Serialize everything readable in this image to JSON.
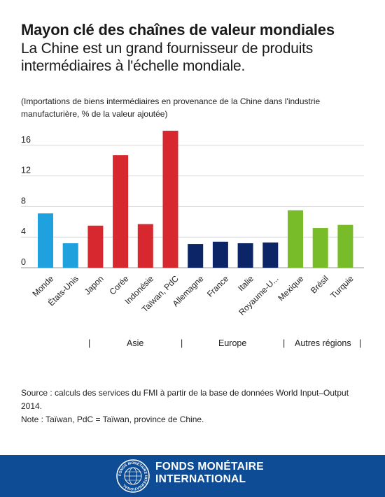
{
  "title": "Mayon clé des chaînes de valeur mondiales",
  "subtitle": "La Chine est un grand fournisseur de produits intermédiaires à l'échelle mondiale.",
  "units_note": "(Importations de biens intermédiaires en provenance de la Chine dans l'industrie manufacturière, % de la valeur ajoutée)",
  "chart_data": {
    "type": "bar",
    "categories": [
      "Monde",
      "États-Unis",
      "Japon",
      "Corée",
      "Indonésie",
      "Taïwan, PdC",
      "Allemagne",
      "France",
      "Italie",
      "Royaume-U...",
      "Mexique",
      "Brésil",
      "Turquie"
    ],
    "values": [
      7.1,
      3.2,
      5.5,
      14.7,
      5.7,
      17.9,
      3.1,
      3.4,
      3.2,
      3.3,
      7.5,
      5.2,
      5.6
    ],
    "colors": [
      "#1ea1dc",
      "#1ea1dc",
      "#d7282f",
      "#d7282f",
      "#d7282f",
      "#d7282f",
      "#0b2566",
      "#0b2566",
      "#0b2566",
      "#0b2566",
      "#78bc2a",
      "#78bc2a",
      "#78bc2a"
    ],
    "yticks": [
      0,
      4,
      8,
      12,
      16
    ],
    "ylim": [
      0,
      19
    ],
    "grid": true,
    "groups": [
      {
        "label": "Asie",
        "from": 2,
        "to": 5
      },
      {
        "label": "Europe",
        "from": 6,
        "to": 9
      },
      {
        "label": "Autres régions",
        "from": 10,
        "to": 12
      }
    ]
  },
  "source": "Source : calculs des services du FMI à partir de la  base de données World Input–Output 2014.",
  "note": "Note : Taïwan, PdC = Taïwan, province de Chine.",
  "footer": {
    "org_line1": "FONDS MONÉTAIRE",
    "org_line2": "INTERNATIONAL",
    "seal_icon": "imf-seal-icon",
    "seal_text": "FONDS MONÉTAIRE INTERNATIONAL"
  }
}
